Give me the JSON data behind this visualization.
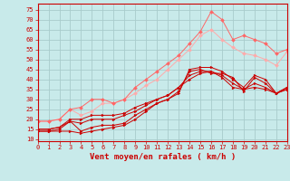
{
  "background_color": "#c8eaea",
  "grid_color": "#a8cccc",
  "xlabel": "Vent moyen/en rafales ( km/h )",
  "xlabel_color": "#cc0000",
  "xlabel_fontsize": 6.5,
  "ylabel_ticks": [
    10,
    15,
    20,
    25,
    30,
    35,
    40,
    45,
    50,
    55,
    60,
    65,
    70,
    75
  ],
  "xticks": [
    0,
    1,
    2,
    3,
    4,
    5,
    6,
    7,
    8,
    9,
    10,
    11,
    12,
    13,
    14,
    15,
    16,
    17,
    18,
    19,
    20,
    21,
    22,
    23
  ],
  "ylim": [
    9,
    78
  ],
  "xlim": [
    0,
    23
  ],
  "tick_color": "#cc0000",
  "tick_fontsize": 5.0,
  "series": [
    {
      "x": [
        0,
        1,
        2,
        3,
        4,
        5,
        6,
        7,
        8,
        9,
        10,
        11,
        12,
        13,
        14,
        15,
        16,
        17,
        18,
        19,
        20,
        21,
        22,
        23
      ],
      "y": [
        14,
        14,
        14,
        14,
        13,
        14,
        15,
        16,
        17,
        20,
        24,
        28,
        30,
        33,
        45,
        46,
        46,
        44,
        40,
        36,
        42,
        40,
        33,
        36
      ],
      "color": "#cc0000",
      "linewidth": 0.7,
      "marker": ">",
      "markersize": 2.0,
      "alpha": 1.0
    },
    {
      "x": [
        0,
        1,
        2,
        3,
        4,
        5,
        6,
        7,
        8,
        9,
        10,
        11,
        12,
        13,
        14,
        15,
        16,
        17,
        18,
        19,
        20,
        21,
        22,
        23
      ],
      "y": [
        14,
        14,
        15,
        19,
        14,
        16,
        17,
        17,
        18,
        22,
        25,
        28,
        30,
        34,
        44,
        45,
        43,
        43,
        41,
        34,
        41,
        38,
        33,
        36
      ],
      "color": "#cc0000",
      "linewidth": 0.7,
      "marker": ">",
      "markersize": 2.0,
      "alpha": 1.0
    },
    {
      "x": [
        0,
        1,
        2,
        3,
        4,
        5,
        6,
        7,
        8,
        9,
        10,
        11,
        12,
        13,
        14,
        15,
        16,
        17,
        18,
        19,
        20,
        21,
        22,
        23
      ],
      "y": [
        15,
        15,
        16,
        19,
        18,
        20,
        20,
        20,
        22,
        24,
        27,
        30,
        32,
        36,
        42,
        44,
        44,
        42,
        38,
        35,
        38,
        36,
        33,
        35
      ],
      "color": "#cc0000",
      "linewidth": 0.7,
      "marker": ">",
      "markersize": 2.0,
      "alpha": 1.0
    },
    {
      "x": [
        0,
        1,
        2,
        3,
        4,
        5,
        6,
        7,
        8,
        9,
        10,
        11,
        12,
        13,
        14,
        15,
        16,
        17,
        18,
        19,
        20,
        21,
        22,
        23
      ],
      "y": [
        15,
        15,
        16,
        20,
        20,
        22,
        22,
        22,
        23,
        26,
        28,
        30,
        32,
        36,
        40,
        43,
        44,
        41,
        36,
        35,
        36,
        35,
        33,
        35
      ],
      "color": "#cc0000",
      "linewidth": 0.7,
      "marker": ">",
      "markersize": 2.0,
      "alpha": 1.0
    },
    {
      "x": [
        0,
        1,
        2,
        3,
        4,
        5,
        6,
        7,
        8,
        9,
        10,
        11,
        12,
        13,
        14,
        15,
        16,
        17,
        18,
        19,
        20,
        21,
        22,
        23
      ],
      "y": [
        19,
        19,
        20,
        25,
        22,
        24,
        28,
        28,
        30,
        33,
        37,
        40,
        45,
        50,
        55,
        62,
        65,
        60,
        56,
        53,
        52,
        50,
        47,
        54
      ],
      "color": "#ffaaaa",
      "linewidth": 0.7,
      "marker": "D",
      "markersize": 2.0,
      "alpha": 1.0
    },
    {
      "x": [
        0,
        1,
        2,
        3,
        4,
        5,
        6,
        7,
        8,
        9,
        10,
        11,
        12,
        13,
        14,
        15,
        16,
        17,
        18,
        19,
        20,
        21,
        22,
        23
      ],
      "y": [
        19,
        19,
        20,
        25,
        26,
        30,
        30,
        28,
        30,
        36,
        40,
        44,
        48,
        52,
        58,
        64,
        74,
        70,
        60,
        62,
        60,
        58,
        53,
        55
      ],
      "color": "#ff6666",
      "linewidth": 0.7,
      "marker": "D",
      "markersize": 2.0,
      "alpha": 1.0
    }
  ]
}
